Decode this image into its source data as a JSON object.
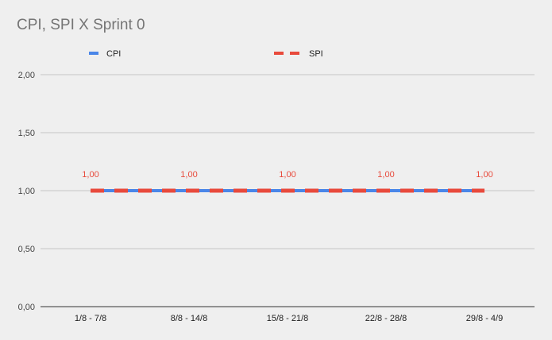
{
  "chart_data": {
    "type": "line",
    "title": "CPI, SPI X Sprint 0",
    "categories": [
      "1/8 - 7/8",
      "8/8 - 14/8",
      "15/8 - 21/8",
      "22/8 - 28/8",
      "29/8 - 4/9"
    ],
    "series": [
      {
        "name": "CPI",
        "values": [
          1.0,
          1.0,
          1.0,
          1.0,
          1.0
        ],
        "color": "#4a86e8",
        "dash": "solid"
      },
      {
        "name": "SPI",
        "values": [
          1.0,
          1.0,
          1.0,
          1.0,
          1.0
        ],
        "color": "#e84a3c",
        "dash": "dashed"
      }
    ],
    "data_labels": [
      "1,00",
      "1,00",
      "1,00",
      "1,00",
      "1,00"
    ],
    "y_ticks": [
      "0,00",
      "0,50",
      "1,00",
      "1,50",
      "2,00"
    ],
    "ylim": [
      0,
      2
    ],
    "xlabel": "",
    "ylabel": "",
    "grid": true,
    "legend_position": "top"
  }
}
